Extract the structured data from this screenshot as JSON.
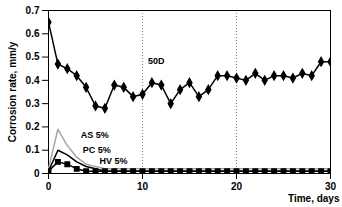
{
  "chart_data": {
    "type": "line",
    "x_label": "Time, days",
    "y_label": "Corrosion rate, mm/y",
    "x": [
      0,
      1,
      2,
      3,
      4,
      5,
      6,
      7,
      8,
      9,
      10,
      11,
      12,
      13,
      14,
      15,
      16,
      17,
      18,
      19,
      20,
      21,
      22,
      23,
      24,
      25,
      26,
      27,
      28,
      29,
      30
    ],
    "series": [
      {
        "name": "50D",
        "color": "#000000",
        "marker": "diamond",
        "line_style": "solid",
        "values": [
          0.65,
          0.47,
          0.45,
          0.42,
          0.37,
          0.29,
          0.28,
          0.38,
          0.37,
          0.33,
          0.34,
          0.39,
          0.38,
          0.3,
          0.36,
          0.39,
          0.33,
          0.36,
          0.42,
          0.42,
          0.41,
          0.4,
          0.43,
          0.4,
          0.42,
          0.42,
          0.41,
          0.43,
          0.42,
          0.48,
          0.48
        ]
      },
      {
        "name": "AS 5%",
        "color": "#a6a6a6",
        "marker": "none",
        "line_style": "solid",
        "values": [
          0.02,
          0.19,
          0.12,
          0.07,
          0.04,
          0.03,
          0.02,
          0.02,
          0.02,
          0.02,
          0.02,
          0.02,
          0.02,
          0.02,
          0.02,
          0.02,
          0.02,
          0.02,
          0.02,
          0.02,
          0.02,
          0.02,
          0.02,
          0.02,
          0.02,
          0.02,
          0.02,
          0.02,
          0.02,
          0.02,
          0.02
        ]
      },
      {
        "name": "PC 5%",
        "color": "#000000",
        "marker": "none",
        "line_style": "solid",
        "values": [
          0.01,
          0.1,
          0.08,
          0.05,
          0.03,
          0.02,
          0.01,
          0.01,
          0.01,
          0.01,
          0.01,
          0.01,
          0.01,
          0.01,
          0.01,
          0.01,
          0.01,
          0.01,
          0.01,
          0.01,
          0.01,
          0.01,
          0.01,
          0.01,
          0.01,
          0.01,
          0.01,
          0.01,
          0.01,
          0.01,
          0.01
        ]
      },
      {
        "name": "HV 5%",
        "color": "#000000",
        "marker": "square",
        "line_style": "solid",
        "values": [
          0.01,
          0.05,
          0.04,
          0.02,
          0.01,
          0.01,
          0.01,
          0.01,
          0.01,
          0.01,
          0.01,
          0.01,
          0.01,
          0.01,
          0.01,
          0.01,
          0.01,
          0.01,
          0.01,
          0.01,
          0.01,
          0.01,
          0.01,
          0.01,
          0.01,
          0.01,
          0.01,
          0.01,
          0.01,
          0.01,
          0.01
        ]
      }
    ],
    "xlim": [
      0,
      30
    ],
    "xticks": [
      0,
      10,
      20,
      30
    ],
    "ylim": [
      0,
      0.7
    ],
    "yticks": [
      0,
      0.1,
      0.2,
      0.3,
      0.4,
      0.5,
      0.6,
      0.7
    ],
    "grid": true
  }
}
